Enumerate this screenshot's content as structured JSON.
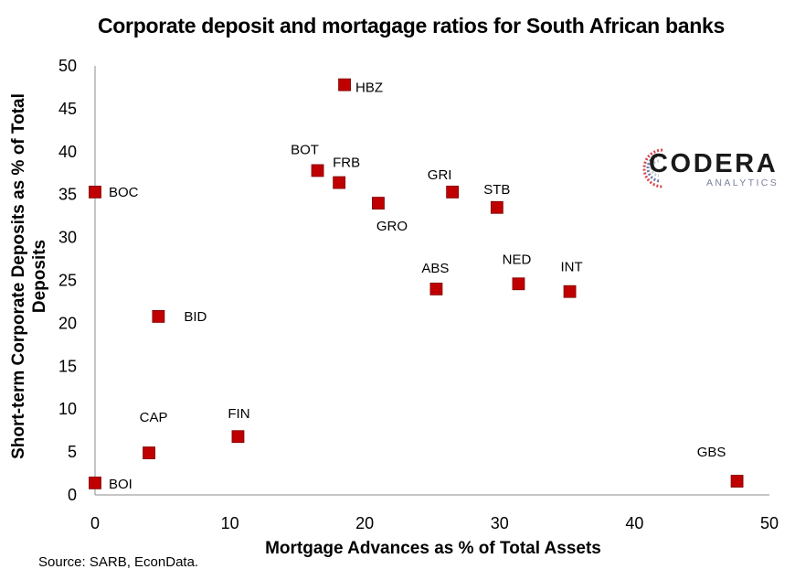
{
  "chart_data": {
    "type": "scatter",
    "title": "Corporate deposit and mortagage ratios for South African banks",
    "xlabel": "Mortgage Advances as % of Total Assets",
    "ylabel": "Short-term Corporate Deposits as % of Total Deposits",
    "xlim": [
      0,
      50
    ],
    "ylim": [
      0,
      50
    ],
    "x_ticks": [
      0,
      10,
      20,
      30,
      40,
      50
    ],
    "y_ticks": [
      0,
      5,
      10,
      15,
      20,
      25,
      30,
      35,
      40,
      45,
      50
    ],
    "grid": false,
    "legend": "none",
    "marker_color": "#c00000",
    "points": [
      {
        "label": "HBZ",
        "x": 18.5,
        "y": 47.8
      },
      {
        "label": "BOT",
        "x": 16.5,
        "y": 37.8
      },
      {
        "label": "FRB",
        "x": 18.1,
        "y": 36.4
      },
      {
        "label": "BOC",
        "x": 0.0,
        "y": 35.3
      },
      {
        "label": "GRI",
        "x": 26.5,
        "y": 35.3
      },
      {
        "label": "GRO",
        "x": 21.0,
        "y": 34.0
      },
      {
        "label": "STB",
        "x": 29.8,
        "y": 33.5
      },
      {
        "label": "NED",
        "x": 31.4,
        "y": 24.6
      },
      {
        "label": "ABS",
        "x": 25.3,
        "y": 24.0
      },
      {
        "label": "INT",
        "x": 35.2,
        "y": 23.7
      },
      {
        "label": "BID",
        "x": 4.7,
        "y": 20.8
      },
      {
        "label": "FIN",
        "x": 10.6,
        "y": 6.8
      },
      {
        "label": "CAP",
        "x": 4.0,
        "y": 4.9
      },
      {
        "label": "GBS",
        "x": 47.6,
        "y": 1.6
      },
      {
        "label": "BOI",
        "x": 0.0,
        "y": 1.4
      }
    ]
  },
  "source": "Source: SARB, EconData.",
  "logo": {
    "name": "CODERA",
    "tagline": "ANALYTICS"
  }
}
